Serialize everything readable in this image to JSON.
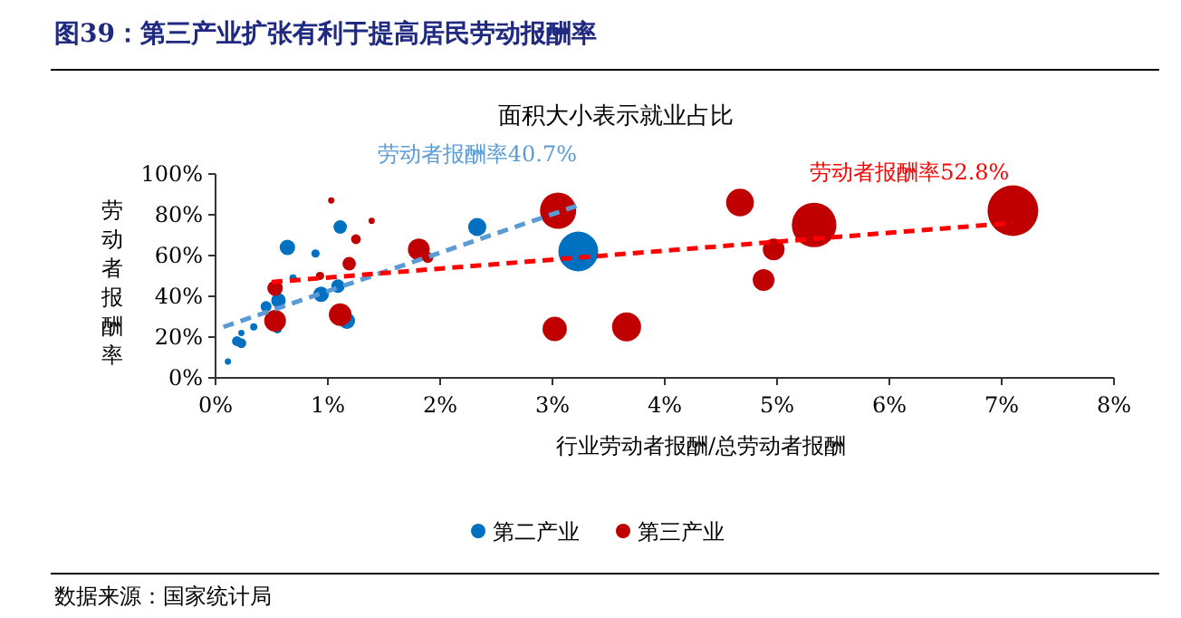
{
  "chart_data": {
    "type": "bubble",
    "title": "图39：第三产业扩张有利于提高居民劳动报酬率",
    "subtitle": "面积大小表示就业占比",
    "xlabel": "行业劳动者报酬/总劳动者报酬",
    "ylabel": "劳动者报酬率",
    "annotations": [
      "数据来源：国家统计局"
    ],
    "xlim": [
      0,
      8
    ],
    "xticks": [
      {
        "value": 0,
        "label": "0%"
      },
      {
        "value": 1,
        "label": "1%"
      },
      {
        "value": 2,
        "label": "2%"
      },
      {
        "value": 3,
        "label": "3%"
      },
      {
        "value": 4,
        "label": "4%"
      },
      {
        "value": 5,
        "label": "5%"
      },
      {
        "value": 6,
        "label": "6%"
      },
      {
        "value": 7,
        "label": "7%"
      },
      {
        "value": 8,
        "label": "8%"
      }
    ],
    "ylim": [
      0,
      100
    ],
    "yticks": [
      {
        "value": 0,
        "label": "0%"
      },
      {
        "value": 20,
        "label": "20%"
      },
      {
        "value": 40,
        "label": "40%"
      },
      {
        "value": 60,
        "label": "60%"
      },
      {
        "value": 80,
        "label": "80%"
      },
      {
        "value": 100,
        "label": "100%"
      }
    ],
    "grid": false,
    "legend": "bottom",
    "series": [
      {
        "name": "第二产业",
        "color": "#0070c0",
        "x": [
          0.11,
          0.19,
          0.23,
          0.23,
          0.34,
          0.45,
          0.56,
          0.55,
          0.64,
          0.69,
          0.89,
          0.94,
          1.09,
          1.11,
          1.17,
          2.33,
          3.23
        ],
        "values": [
          8,
          18,
          17,
          22,
          25,
          35,
          38,
          24,
          64,
          49,
          61,
          41,
          45,
          74,
          28,
          74,
          62
        ],
        "sizes": [
          0.015,
          0.037,
          0.037,
          0.015,
          0.02,
          0.046,
          0.082,
          0.032,
          0.094,
          0.02,
          0.027,
          0.094,
          0.07,
          0.07,
          0.103,
          0.128,
          0.617
        ]
      },
      {
        "name": "第三产业",
        "color": "#c00000",
        "x": [
          0.53,
          0.53,
          0.93,
          1.03,
          1.11,
          1.19,
          1.25,
          1.39,
          1.81,
          1.89,
          3.05,
          3.02,
          3.66,
          4.67,
          4.97,
          4.88,
          5.33,
          7.1
        ],
        "values": [
          28,
          44,
          50,
          87,
          31,
          56,
          68,
          77,
          63,
          59,
          82,
          24,
          25,
          86,
          63,
          48,
          75,
          82
        ],
        "sizes": [
          0.184,
          0.094,
          0.027,
          0.015,
          0.2,
          0.07,
          0.037,
          0.015,
          0.184,
          0.046,
          0.51,
          0.23,
          0.327,
          0.3,
          0.184,
          0.184,
          0.772,
          1
        ]
      },
      {
        "name": "劳动者报酬率40.7%",
        "type": "line",
        "line_style": "dashed",
        "color": "#5b9bd5",
        "x": [
          0.07,
          3.25
        ],
        "values": [
          25,
          85
        ]
      },
      {
        "name": "劳动者报酬率52.8%",
        "type": "line",
        "line_style": "dashed",
        "color": "#ff0000",
        "x": [
          0.5,
          7.1
        ],
        "values": [
          47,
          76
        ]
      }
    ]
  }
}
